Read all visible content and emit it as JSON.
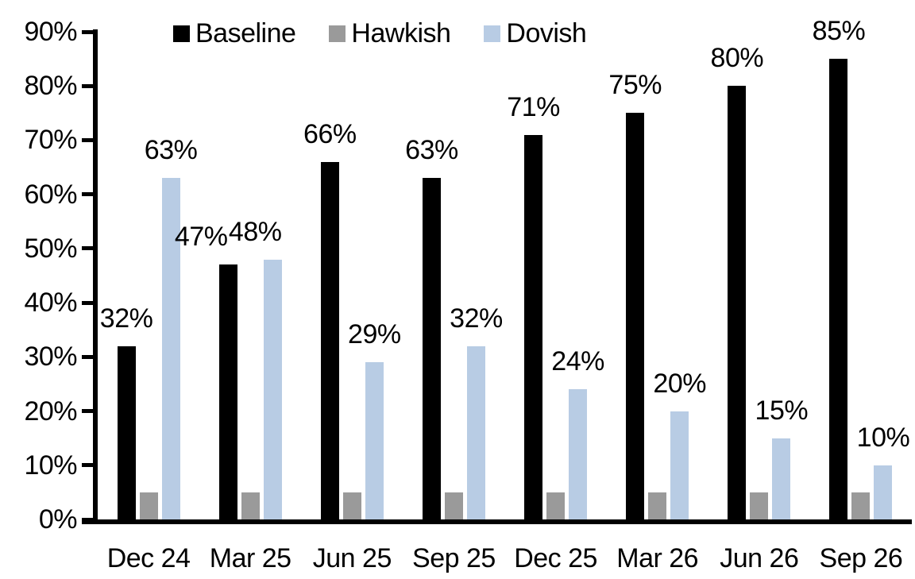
{
  "chart_data": {
    "type": "bar",
    "categories": [
      "Dec 24",
      "Mar 25",
      "Jun 25",
      "Sep 25",
      "Dec 25",
      "Mar 26",
      "Jun 26",
      "Sep 26"
    ],
    "series": [
      {
        "name": "Baseline",
        "color": "#000000",
        "values": [
          32,
          47,
          66,
          63,
          71,
          75,
          80,
          85
        ],
        "labels": [
          "32%",
          "47%",
          "66%",
          "63%",
          "71%",
          "75%",
          "80%",
          "85%"
        ]
      },
      {
        "name": "Hawkish",
        "color": "#9A9A9A",
        "values": [
          5,
          5,
          5,
          5,
          5,
          5,
          5,
          5
        ],
        "labels": [
          "",
          "",
          "",
          "",
          "",
          "",
          "",
          ""
        ]
      },
      {
        "name": "Dovish",
        "color": "#B8CCE4",
        "values": [
          63,
          48,
          29,
          32,
          24,
          20,
          15,
          10
        ],
        "labels": [
          "63%",
          "48%",
          "29%",
          "32%",
          "24%",
          "20%",
          "15%",
          "10%"
        ]
      }
    ],
    "y_axis": {
      "min": 0,
      "max": 90,
      "tick_step": 10,
      "tick_labels": [
        "0%",
        "10%",
        "20%",
        "30%",
        "40%",
        "50%",
        "60%",
        "70%",
        "80%",
        "90%"
      ]
    },
    "legend": {
      "position": "top",
      "entries": [
        "Baseline",
        "Hawkish",
        "Dovish"
      ]
    },
    "grid": false,
    "background": "#FFFFFF",
    "axis_color": "#000000",
    "label_offsets": [
      {
        "series": 0,
        "index": 1,
        "dx": -34
      },
      {
        "series": 2,
        "index": 1,
        "dx": -22
      }
    ]
  }
}
